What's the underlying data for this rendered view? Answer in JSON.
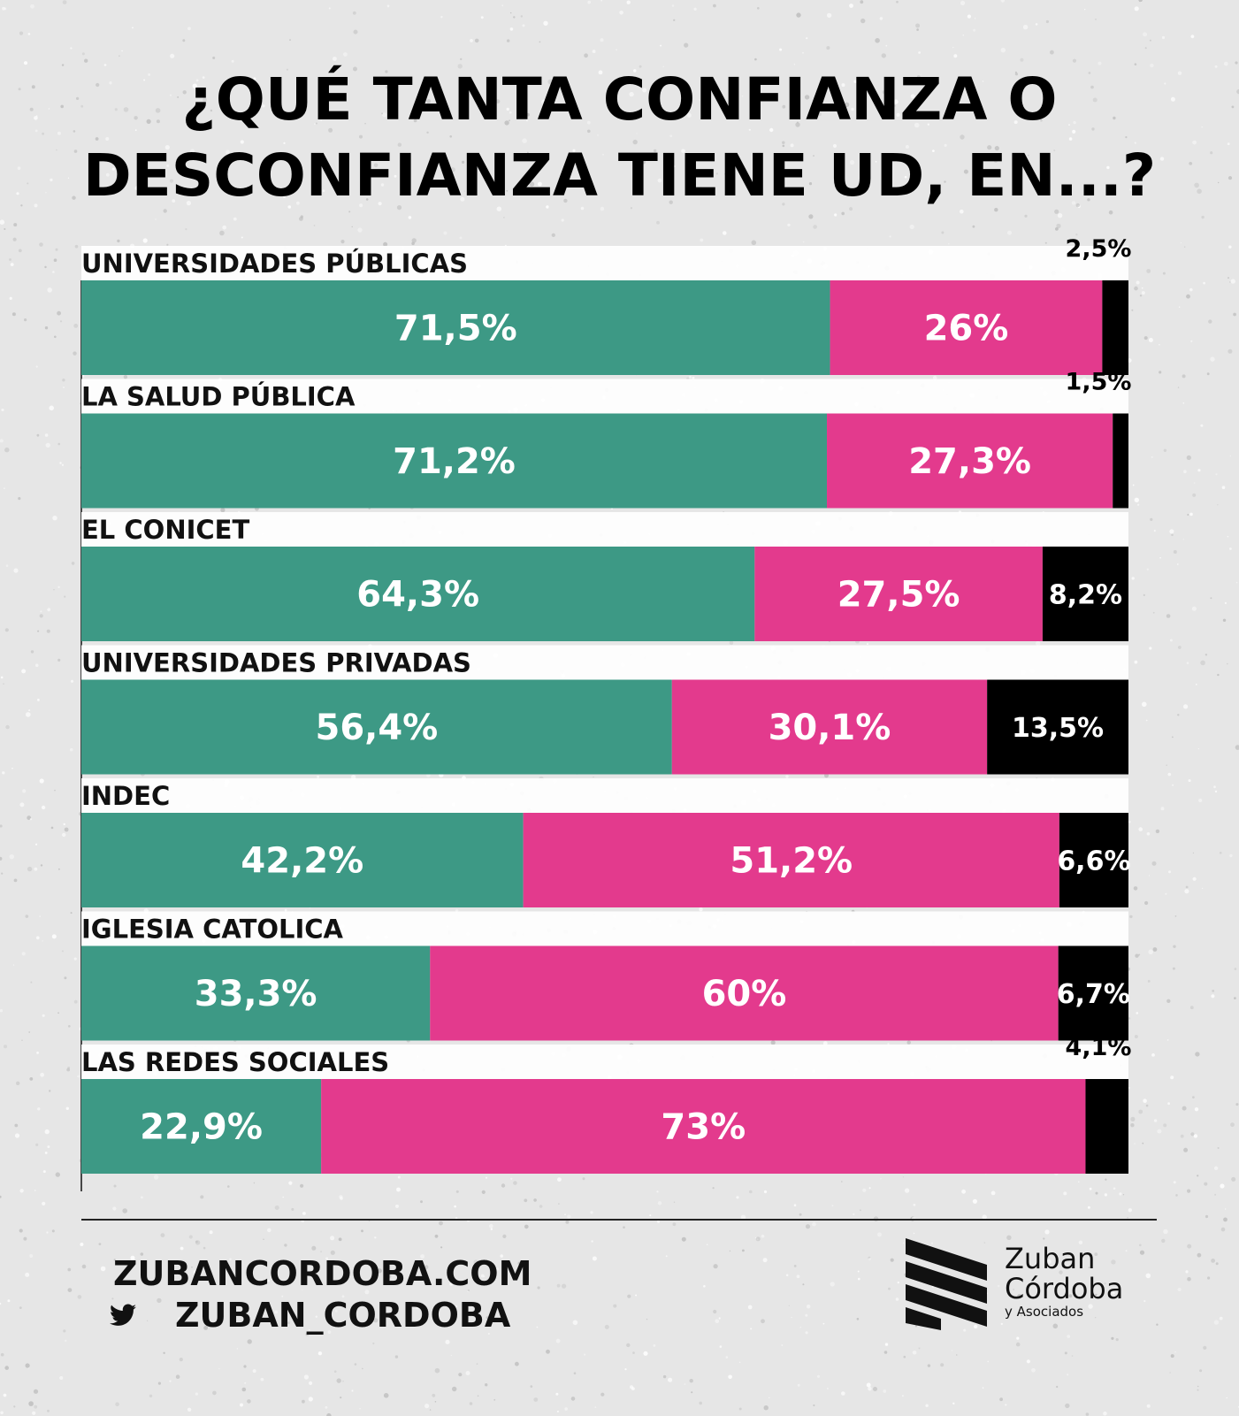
{
  "title_lines": [
    "¿QUÉ TANTA CONFIANZA O",
    "DESCONFIANZA TIENE UD, EN...?"
  ],
  "colors": {
    "confianza": "#3d9985",
    "desconfianza": "#e33a8d",
    "ns_nc": "#000000",
    "label_text": "#ffffff",
    "category_text": "#111111"
  },
  "chart_data": {
    "type": "bar",
    "orientation": "horizontal",
    "stacked": true,
    "title": "¿QUÉ TANTA CONFIANZA O DESCONFIANZA TIENE UD, EN...?",
    "categories": [
      "UNIVERSIDADES PÚBLICAS",
      "LA SALUD PÚBLICA",
      "EL CONICET",
      "UNIVERSIDADES PRIVADAS",
      "INDEC",
      "IGLESIA CATOLICA",
      "LAS REDES SOCIALES"
    ],
    "series": [
      {
        "name": "confianza",
        "values": [
          71.5,
          71.2,
          64.3,
          56.4,
          42.2,
          33.3,
          22.9
        ],
        "labels": [
          "71,5%",
          "71,2%",
          "64,3%",
          "56,4%",
          "42,2%",
          "33,3%",
          "22,9%"
        ]
      },
      {
        "name": "desconfianza",
        "values": [
          26,
          27.3,
          27.5,
          30.1,
          51.2,
          60,
          73
        ],
        "labels": [
          "26%",
          "27,3%",
          "27,5%",
          "30,1%",
          "51,2%",
          "60%",
          "73%"
        ]
      },
      {
        "name": "ns_nc",
        "values": [
          2.5,
          1.5,
          8.2,
          13.5,
          6.6,
          6.7,
          4.1
        ],
        "labels": [
          "2,5%",
          "1,5%",
          "8,2%",
          "13,5%",
          "6,6%",
          "6,7%",
          "4,1%"
        ]
      }
    ],
    "xlim": [
      0,
      100
    ],
    "grid": false,
    "legend": "none"
  },
  "footer": {
    "website": "ZUBANCORDOBA.COM",
    "twitter_icon": "twitter-bird-icon",
    "twitter_handle": "ZUBAN_CORDOBA"
  },
  "logo": {
    "icon": "zuban-cordoba-stripes-logo",
    "line1": "Zuban",
    "line2": "Córdoba",
    "line3": "y Asociados"
  }
}
